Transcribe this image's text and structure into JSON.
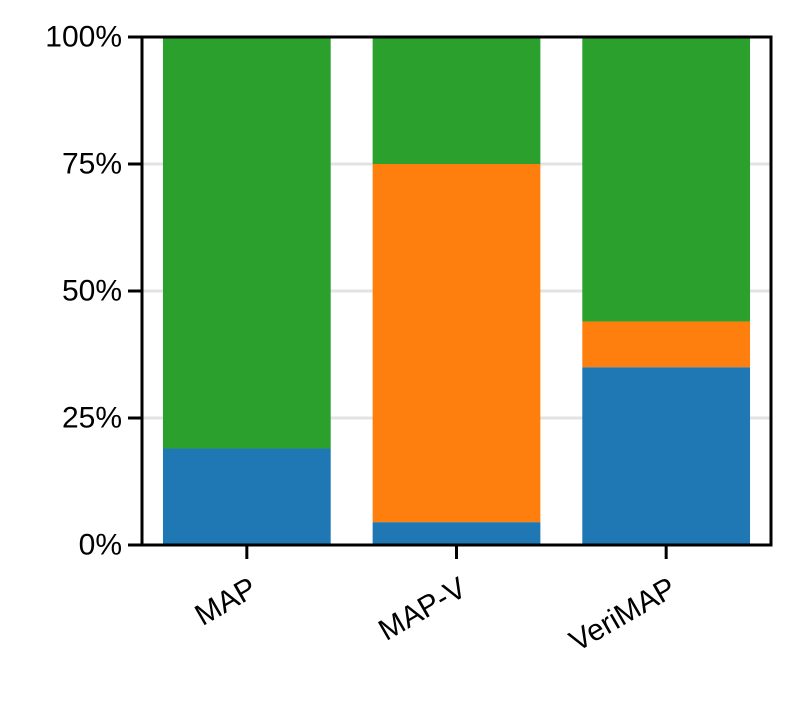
{
  "chart_data": {
    "type": "bar",
    "stacked": true,
    "title": "",
    "xlabel": "",
    "ylabel": "",
    "categories": [
      "MAP",
      "MAP-V",
      "VeriMAP"
    ],
    "series": [
      {
        "color": "#1f77b4",
        "values": [
          19,
          4.5,
          35
        ]
      },
      {
        "color": "#ff7f0e",
        "values": [
          0,
          70.5,
          9
        ]
      },
      {
        "color": "#2ca02c",
        "values": [
          81,
          25,
          56
        ]
      }
    ],
    "ylim": [
      0,
      100
    ],
    "yticks": [
      0,
      25,
      50,
      75,
      100
    ],
    "ytick_labels": [
      "0%",
      "25%",
      "50%",
      "75%",
      "100%"
    ],
    "grid": true,
    "gridlines_on_axis": "y",
    "legend": "none"
  }
}
